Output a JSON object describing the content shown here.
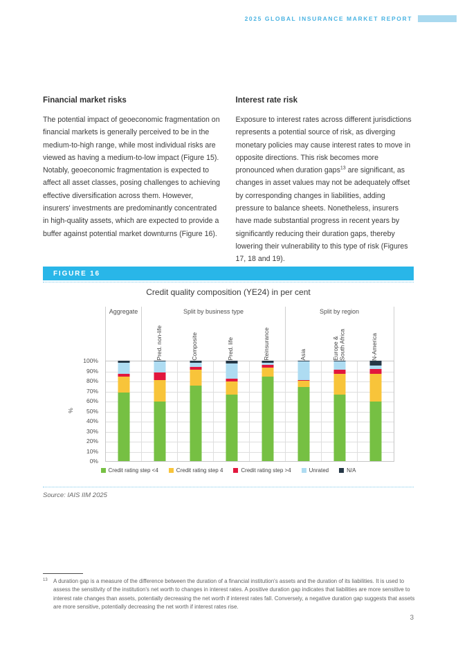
{
  "header": {
    "title": "2025 GLOBAL INSURANCE MARKET REPORT"
  },
  "columns": {
    "left": {
      "heading": "Financial market risks",
      "body": "The potential impact of geoeconomic fragmentation on financial markets is generally perceived to be in the medium-to-high range, while most individual risks are viewed as having a medium-to-low impact (Figure 15). Notably, geoeconomic fragmentation is expected to affect all asset classes, posing challenges to achieving effective diversification across them. However, insurers' investments are predominantly concentrated in high-quality assets, which are expected to provide a buffer against potential market downturns (Figure 16)."
    },
    "right": {
      "heading": "Interest rate risk",
      "body_pre": "Exposure to interest rates across different jurisdictions represents a potential source of risk, as diverging monetary policies may cause interest rates to move in opposite directions. This risk becomes more pronounced when duration gaps",
      "sup": "13",
      "body_post": " are significant, as changes in asset values may not be adequately offset by corresponding changes in liabilities, adding pressure to balance sheets. Nonetheless, insurers have made substantial progress in recent years by significantly reducing their duration gaps, thereby lowering their vulnerability to this type of risk (Figures 17, 18 and 19)."
    }
  },
  "figure_label": "FIGURE 16",
  "chart_data": {
    "type": "bar",
    "stacked": true,
    "title": "Credit quality composition (YE24) in per cent",
    "ylabel": "%",
    "ylim": [
      0,
      100
    ],
    "yticks": [
      "100%",
      "90%",
      "80%",
      "70%",
      "60%",
      "50%",
      "40%",
      "30%",
      "20%",
      "10%",
      "0%"
    ],
    "groups": [
      {
        "label": "Aggregate",
        "span": 1
      },
      {
        "label": "Split by business type",
        "span": 4
      },
      {
        "label": "Split by region",
        "span": 3
      }
    ],
    "categories": [
      "Aggregate",
      "Pred. non-life",
      "Composite",
      "Pred. life",
      "Reinsurance",
      "Asia",
      "Europe &\nSouth Africa",
      "N-America"
    ],
    "series": [
      {
        "name": "Credit rating step <4",
        "color": "#76c043",
        "values": [
          68,
          59,
          75,
          66,
          84,
          74,
          66,
          59
        ]
      },
      {
        "name": "Credit rating step 4",
        "color": "#f8c43a",
        "values": [
          16,
          22,
          16,
          13,
          9,
          6,
          21,
          28
        ]
      },
      {
        "name": "Credit rating step >4",
        "color": "#e2173d",
        "values": [
          3,
          7,
          3,
          3,
          3,
          1,
          4,
          5
        ]
      },
      {
        "name": "Unrated",
        "color": "#aedcf2",
        "values": [
          11,
          11,
          4,
          15,
          2,
          18,
          8,
          3
        ]
      },
      {
        "name": "N/A",
        "color": "#253746",
        "values": [
          2,
          1,
          2,
          3,
          2,
          1,
          1,
          5
        ]
      }
    ],
    "legend_position": "bottom",
    "grid": true
  },
  "source": "Source: IAIS IIM 2025",
  "footnote": {
    "number": "13",
    "text": "A duration gap is a measure of the difference between the duration of a financial institution's assets and the duration of its liabilities. It is used to assess the sensitivity of the institution's net worth to changes in interest rates. A positive duration gap indicates that liabilities are more sensitive to interest rate changes than assets, potentially decreasing the net worth if interest rates fall. Conversely, a negative duration gap suggests that assets are more sensitive, potentially decreasing the net worth if interest rates rise."
  },
  "page_number": "3"
}
